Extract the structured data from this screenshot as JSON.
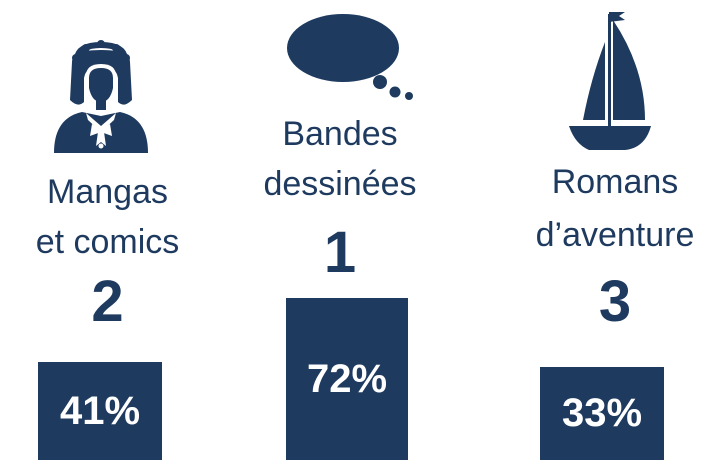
{
  "chart_data": {
    "type": "bar",
    "categories": [
      "Mangas et comics",
      "Bandes dessinées",
      "Romans d’aventure"
    ],
    "values": [
      41,
      72,
      33
    ],
    "ranks": [
      "2",
      "1",
      "3"
    ],
    "value_labels": [
      "41%",
      "72%",
      "33%"
    ],
    "label_lines": [
      [
        "Mangas",
        "et comics"
      ],
      [
        "Bandes",
        "dessinées"
      ],
      [
        "Romans",
        "d’aventure"
      ]
    ],
    "icons": [
      "girl-icon",
      "thought-bubble-icon",
      "sailboat-icon"
    ],
    "color": "#1e3a5f"
  }
}
